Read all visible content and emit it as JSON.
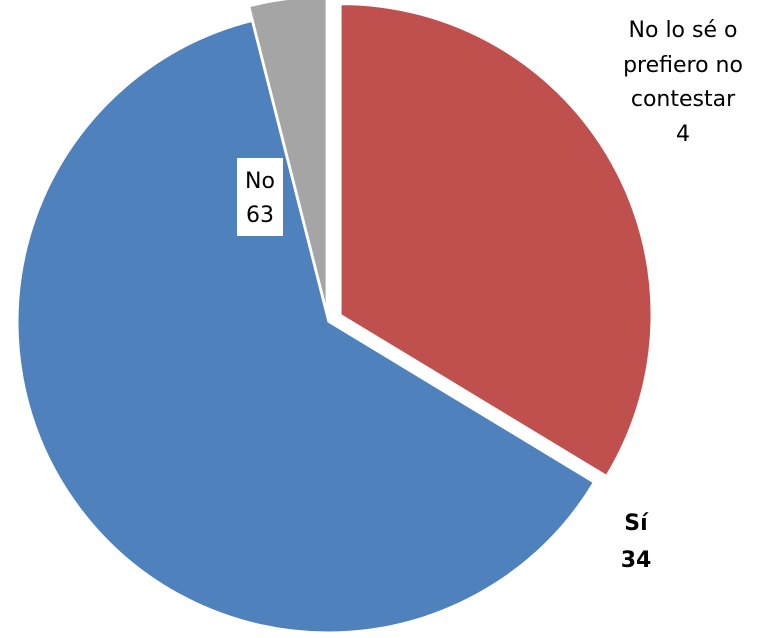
{
  "chart_data": {
    "type": "pie",
    "title": "",
    "slices": [
      {
        "category": "Sí",
        "value": 34,
        "color": "#C0504D"
      },
      {
        "category": "No",
        "value": 63,
        "color": "#4F81BD"
      },
      {
        "category": "No lo sé o prefiero no contestar",
        "value": 4,
        "color": "#A5A5A5"
      }
    ],
    "labels": {
      "si": {
        "name": "Sí",
        "value": "34"
      },
      "no": {
        "name": "No",
        "value": "63"
      },
      "nose": {
        "line1": "No lo sé o",
        "line2": "prefiero no",
        "line3": "contestar",
        "value": "4"
      }
    },
    "start_angle": "12 o'clock",
    "direction": "clockwise",
    "exploded": true,
    "legend": "none"
  }
}
